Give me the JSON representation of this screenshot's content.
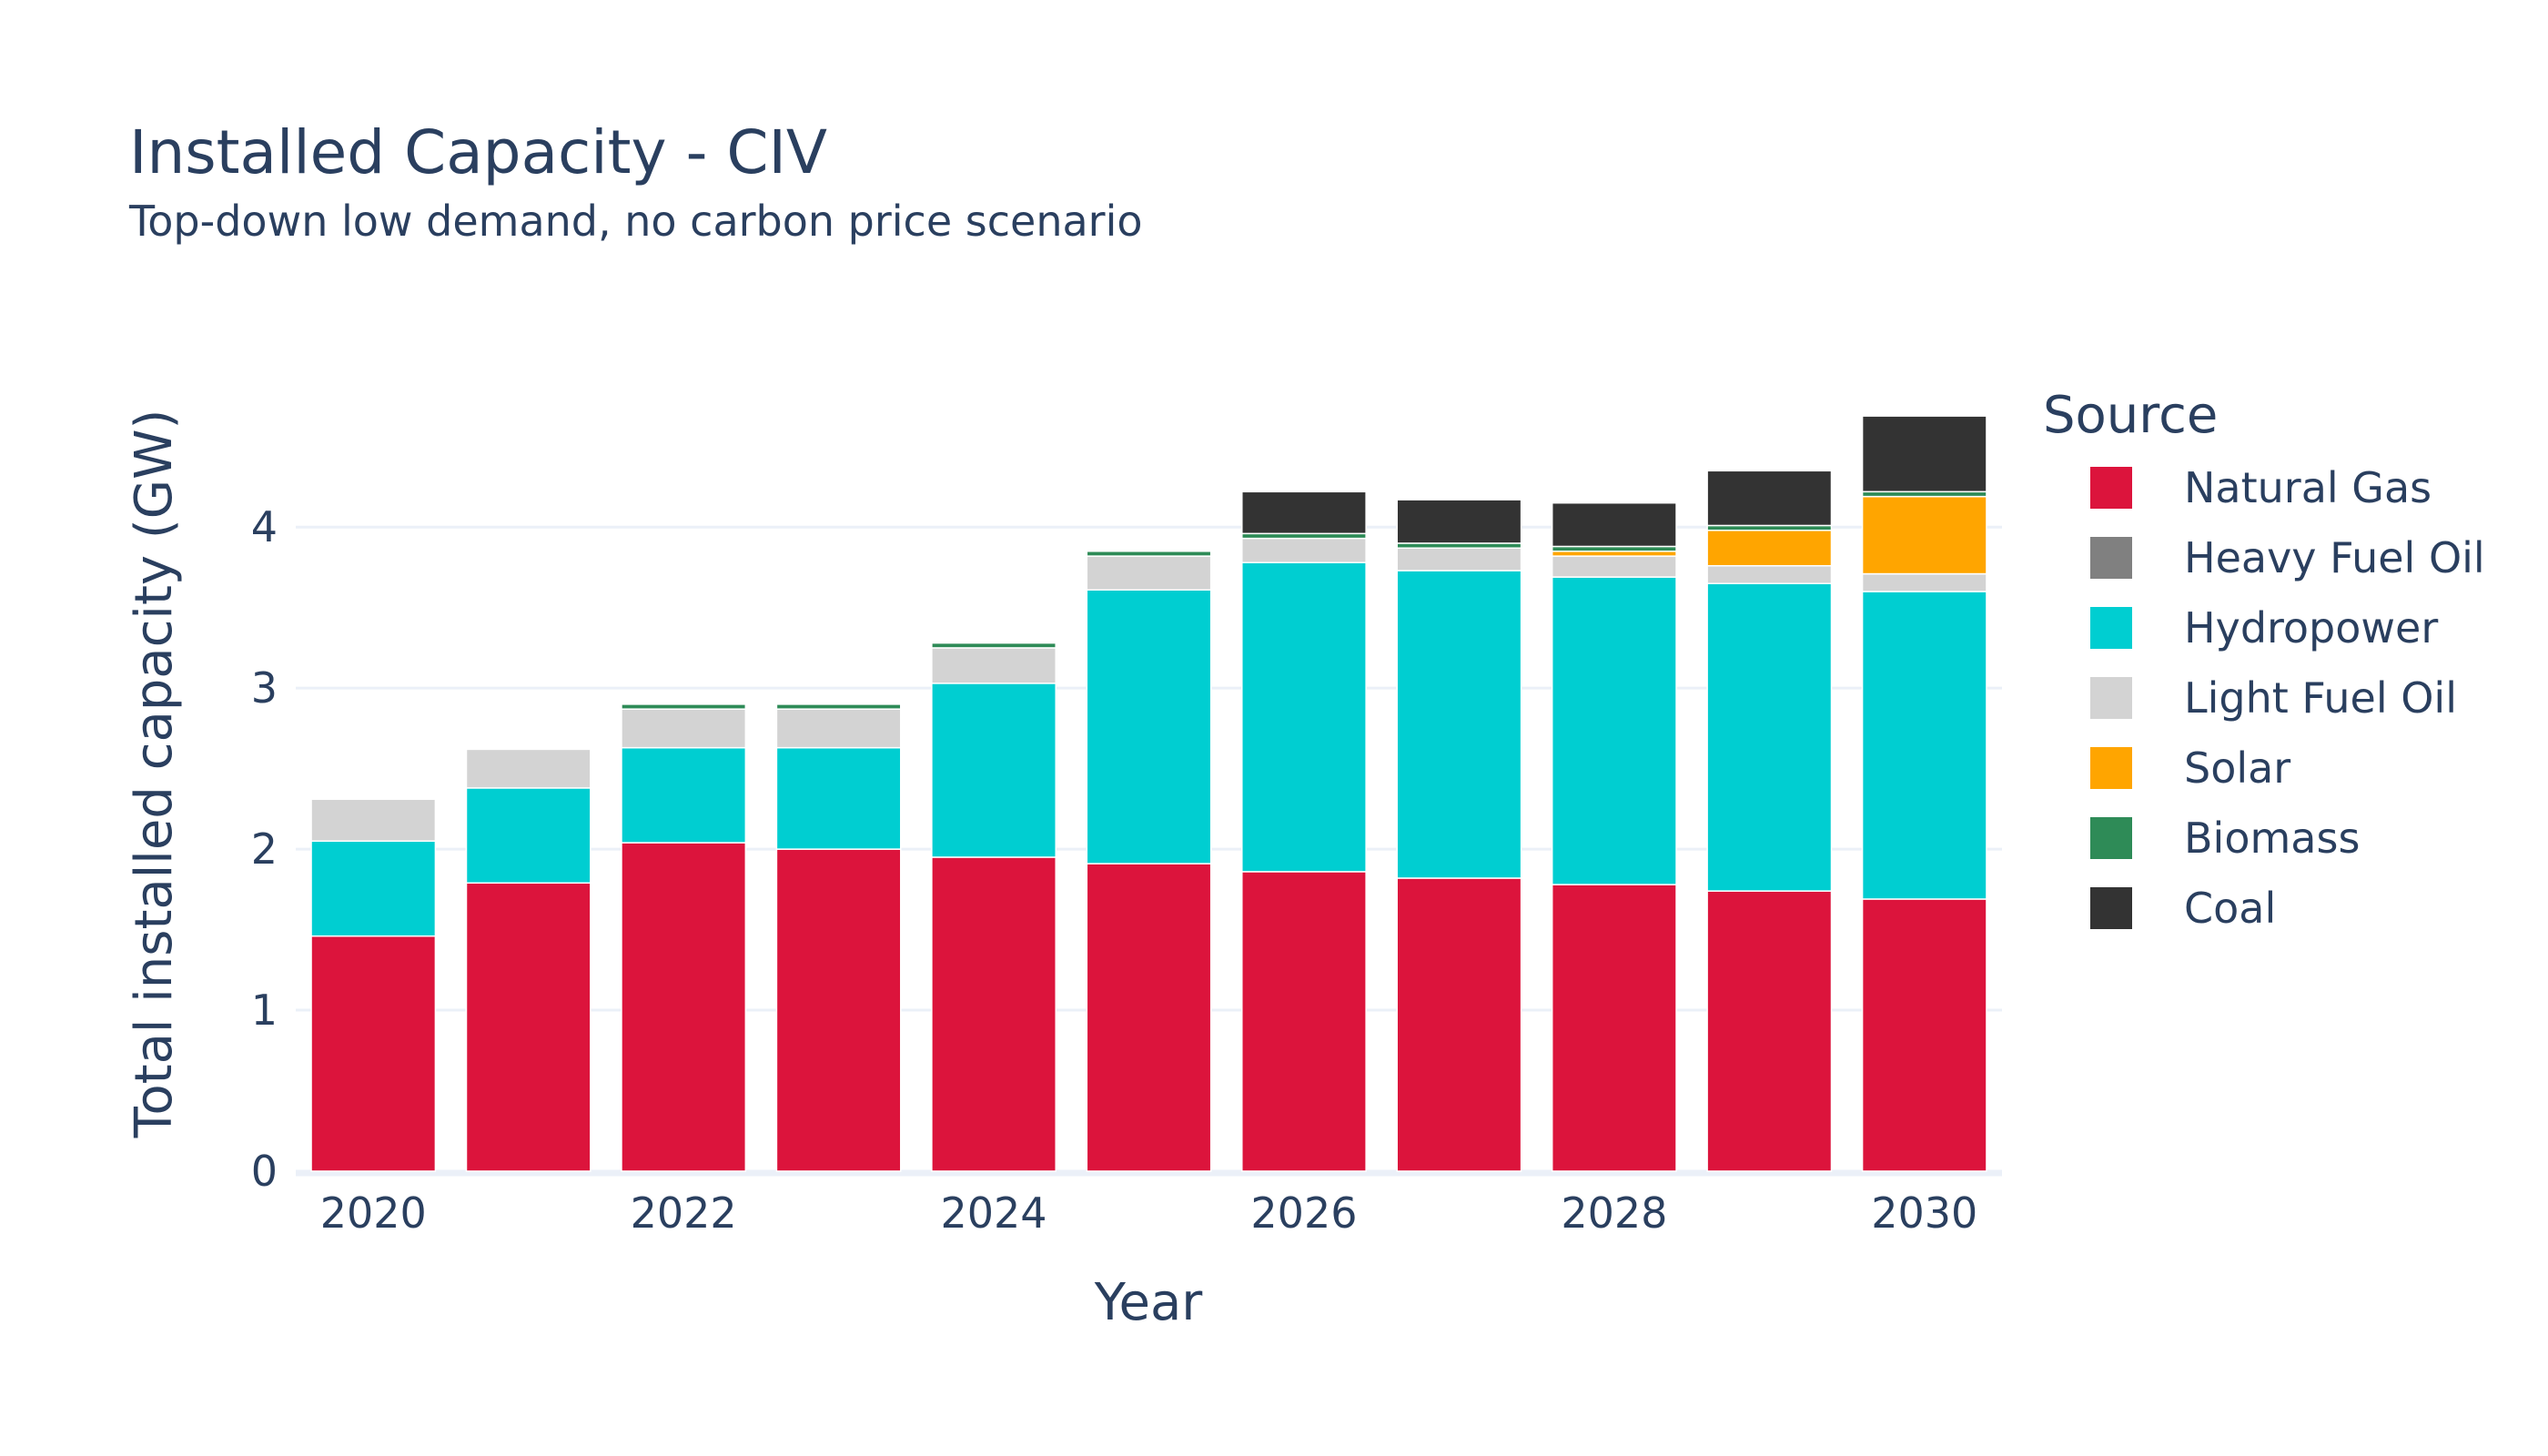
{
  "chart_data": {
    "type": "bar",
    "barmode": "stack",
    "title": "Installed Capacity - CIV",
    "subtitle": "Top-down low demand, no carbon price scenario",
    "xlabel": "Year",
    "ylabel": "Total installed capacity (GW)",
    "x": [
      2020,
      2021,
      2022,
      2023,
      2024,
      2025,
      2026,
      2027,
      2028,
      2029,
      2030
    ],
    "x_tick_labels": [
      "2020",
      "2022",
      "2024",
      "2026",
      "2028",
      "2030"
    ],
    "x_tick_values": [
      2020,
      2022,
      2024,
      2026,
      2028,
      2030
    ],
    "y_tick_labels": [
      "0",
      "1",
      "2",
      "3",
      "4"
    ],
    "y_tick_values": [
      0,
      1,
      2,
      3,
      4
    ],
    "ylim": [
      0,
      4.9
    ],
    "grid": true,
    "legend": {
      "title": "Source",
      "placement": "right"
    },
    "series": [
      {
        "name": "Natural Gas",
        "color": "#dc143c",
        "values": [
          1.46,
          1.79,
          2.04,
          2.0,
          1.95,
          1.91,
          1.86,
          1.82,
          1.78,
          1.74,
          1.69
        ]
      },
      {
        "name": "Heavy Fuel Oil",
        "color": "#808080",
        "values": [
          0,
          0,
          0,
          0,
          0,
          0,
          0,
          0,
          0,
          0,
          0
        ]
      },
      {
        "name": "Hydropower",
        "color": "#00ced1",
        "values": [
          0.59,
          0.59,
          0.59,
          0.63,
          1.08,
          1.7,
          1.92,
          1.91,
          1.91,
          1.91,
          1.91
        ]
      },
      {
        "name": "Light Fuel Oil",
        "color": "#d3d3d3",
        "values": [
          0.26,
          0.24,
          0.24,
          0.24,
          0.22,
          0.21,
          0.15,
          0.14,
          0.13,
          0.11,
          0.11
        ]
      },
      {
        "name": "Solar",
        "color": "#ffa500",
        "values": [
          0,
          0,
          0,
          0,
          0,
          0,
          0,
          0,
          0.03,
          0.22,
          0.48
        ]
      },
      {
        "name": "Biomass",
        "color": "#2e8b57",
        "values": [
          0,
          0,
          0.03,
          0.03,
          0.03,
          0.03,
          0.03,
          0.03,
          0.03,
          0.03,
          0.03
        ]
      },
      {
        "name": "Coal",
        "color": "#333333",
        "values": [
          0,
          0,
          0,
          0,
          0,
          0,
          0.26,
          0.27,
          0.27,
          0.34,
          0.47
        ]
      }
    ]
  }
}
